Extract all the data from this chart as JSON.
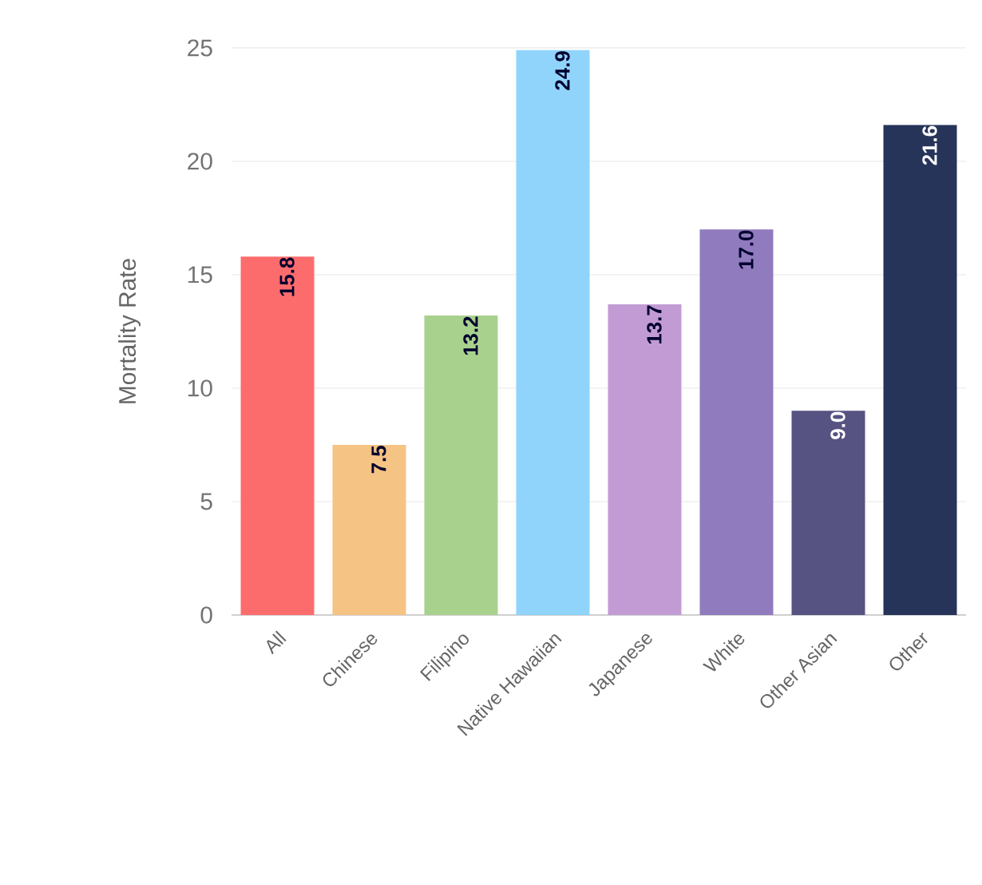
{
  "chart_data": {
    "type": "bar",
    "ylabel": "Mortality Rate",
    "categories": [
      "All",
      "Chinese",
      "Filipino",
      "Native Hawaiian",
      "Japanese",
      "White",
      "Other Asian",
      "Other"
    ],
    "values": [
      15.8,
      7.5,
      13.2,
      24.9,
      13.7,
      17.0,
      9.0,
      21.6
    ],
    "value_labels": [
      "15.8",
      "7.5",
      "13.2",
      "24.9",
      "13.7",
      "17.0",
      "9.0",
      "21.6"
    ],
    "colors": [
      "#fc6c6c",
      "#f5c383",
      "#a9d18e",
      "#90d4fc",
      "#c29bd4",
      "#8f7bbd",
      "#565383",
      "#26345a"
    ],
    "ylim": [
      0,
      25
    ],
    "yticks": [
      0,
      5,
      10,
      15,
      20,
      25
    ],
    "grid": "y"
  }
}
